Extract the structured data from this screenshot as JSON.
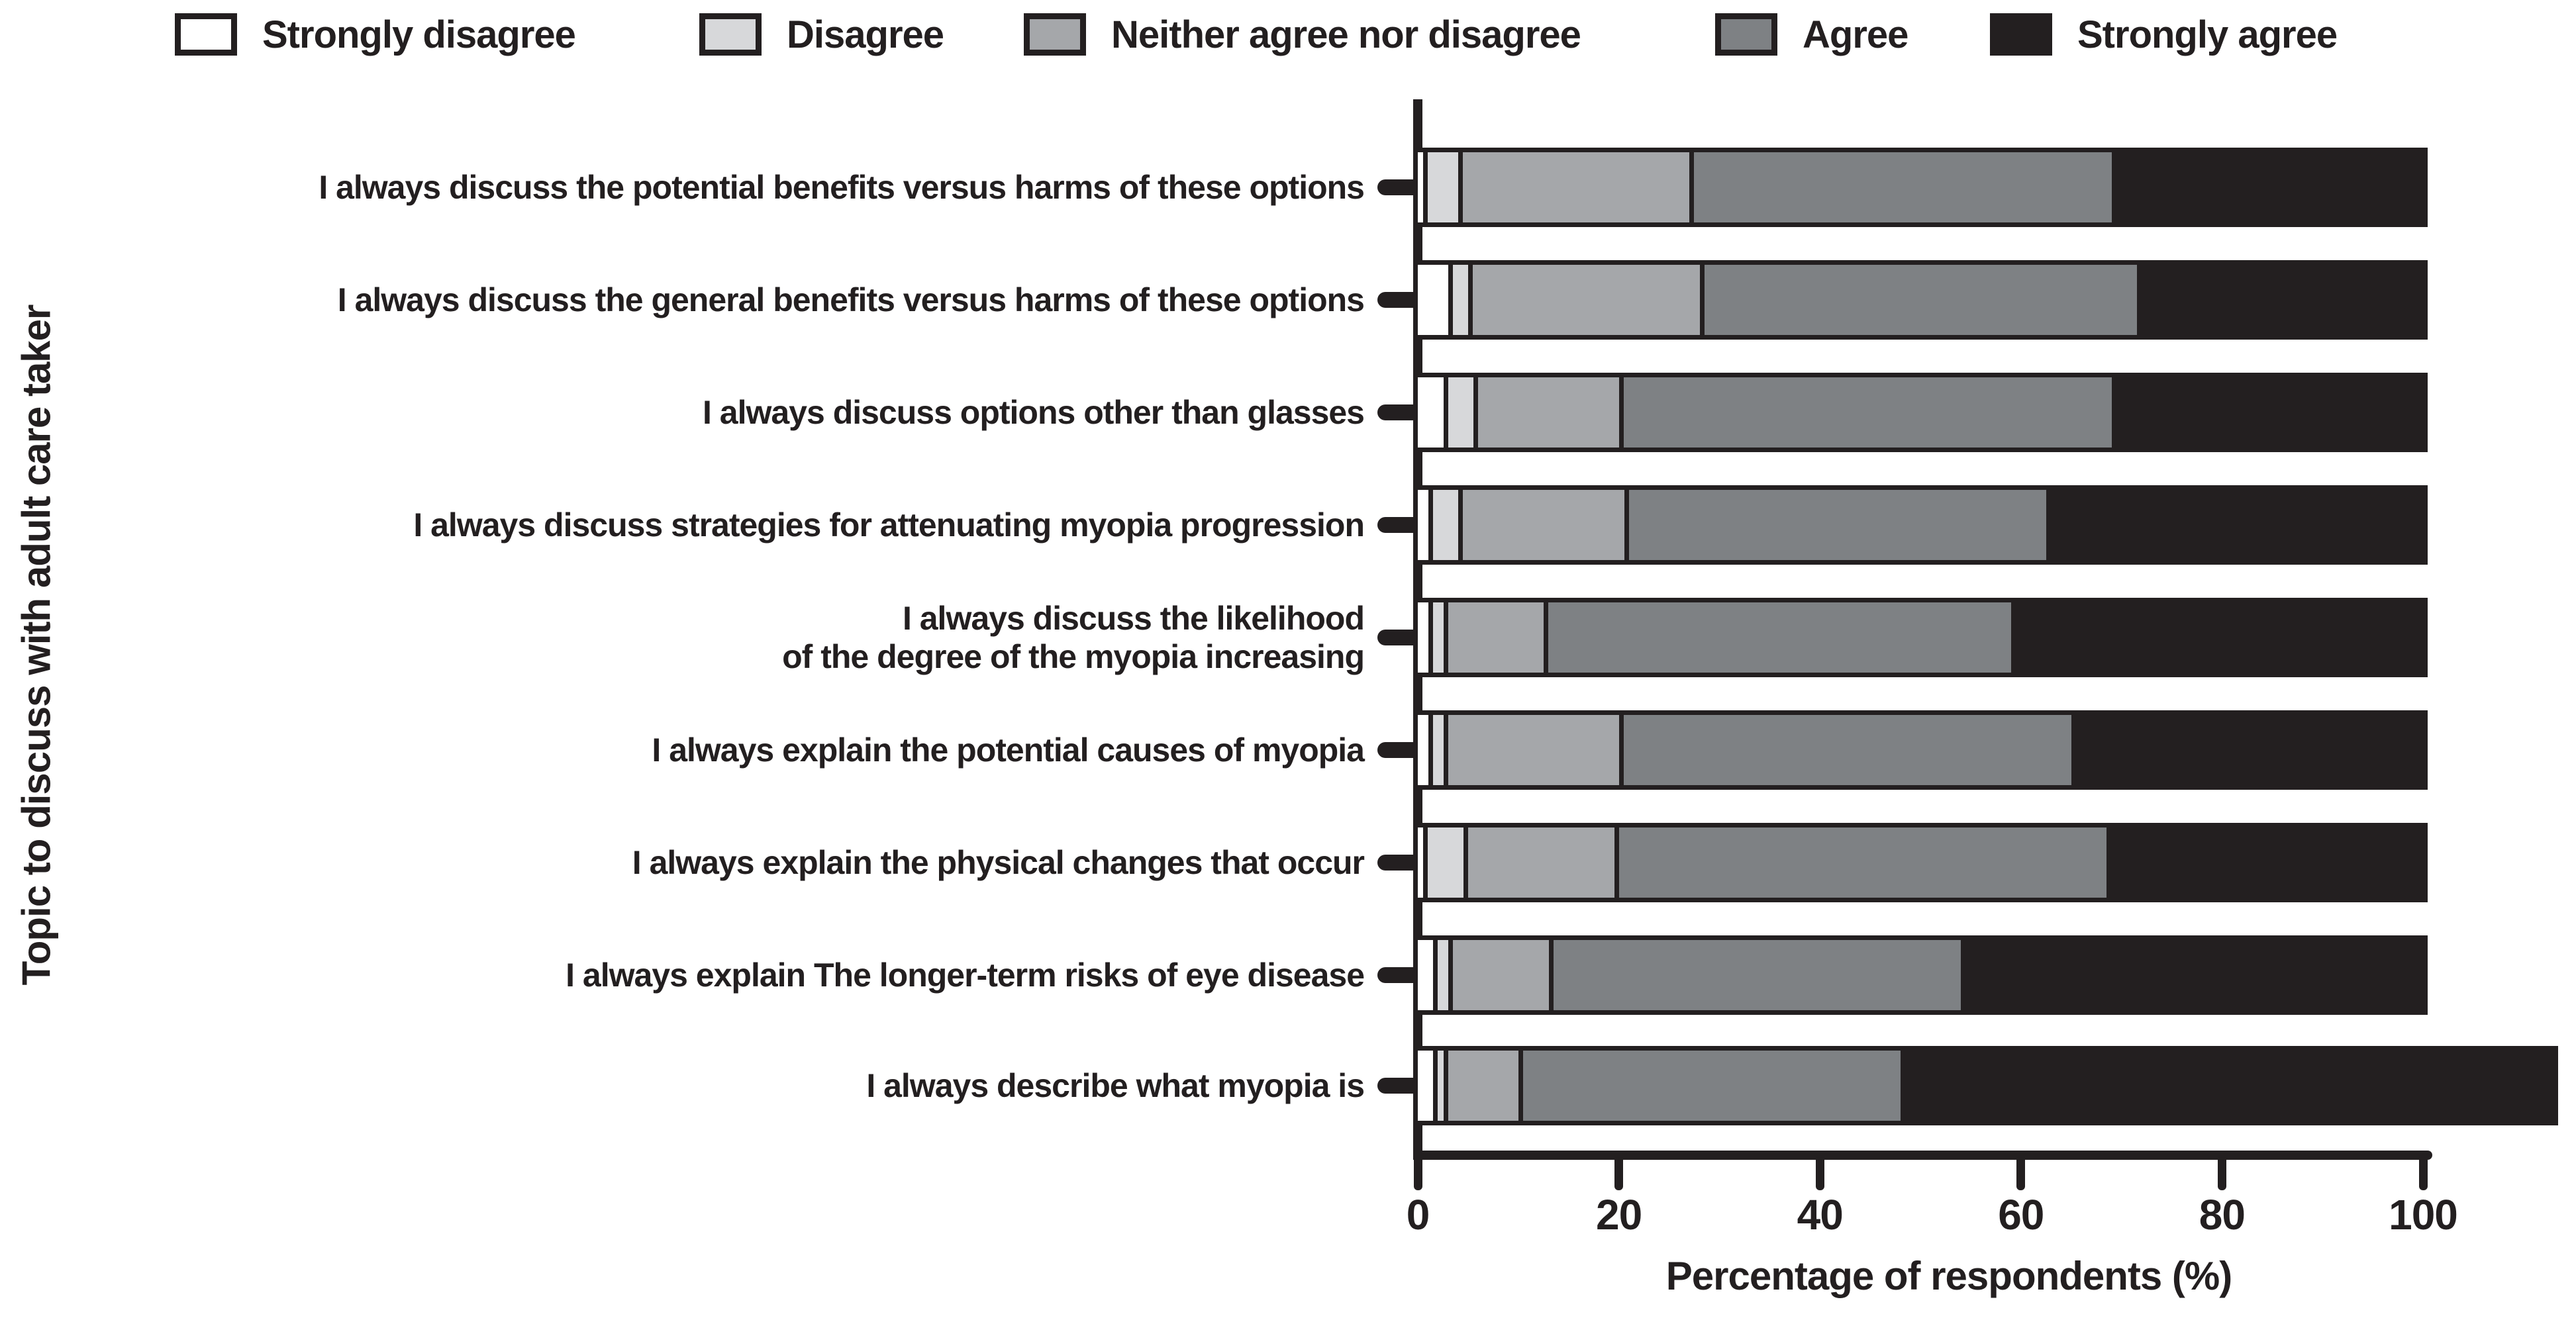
{
  "chart_data": {
    "type": "bar",
    "orientation": "horizontal",
    "stacked": true,
    "title": "",
    "xlabel": "Percentage of respondents (%)",
    "ylabel": "Topic to discuss with adult care taker",
    "xlim": [
      0,
      100
    ],
    "xticks": [
      0,
      20,
      40,
      60,
      80,
      100
    ],
    "grid": false,
    "legend_position": "top",
    "legend": [
      {
        "label": "Strongly disagree",
        "color": "#ffffff"
      },
      {
        "label": "Disagree",
        "color": "#d7d8da"
      },
      {
        "label": "Neither agree nor disagree",
        "color": "#a5a7aa"
      },
      {
        "label": "Agree",
        "color": "#7e8184"
      },
      {
        "label": "Strongly agree",
        "color": "#231f20"
      }
    ],
    "categories": [
      "I always discuss the potential benefits versus harms of these options",
      "I always discuss the general benefits versus harms of these options",
      "I always discuss options other than glasses",
      "I always discuss strategies for attenuating myopia progression",
      "I always discuss the likelihood\nof the degree of the myopia increasing",
      "I always explain the potential causes of myopia",
      "I always explain the physical changes that occur",
      "I always explain The longer-term risks of eye disease",
      "I always describe what myopia is"
    ],
    "series": [
      {
        "name": "Strongly disagree",
        "values": [
          1,
          3.5,
          3,
          1.5,
          1.5,
          1.5,
          1,
          2,
          2
        ]
      },
      {
        "name": "Disagree",
        "values": [
          3.5,
          2,
          3,
          3,
          1.5,
          1.5,
          4,
          1.5,
          1
        ]
      },
      {
        "name": "Neither agree nor disagree",
        "values": [
          23,
          23,
          14.5,
          16.5,
          10,
          17.5,
          15,
          10,
          7.5
        ]
      },
      {
        "name": "Agree",
        "values": [
          42,
          43.5,
          49,
          42,
          46.5,
          45,
          49,
          41,
          38
        ]
      },
      {
        "name": "Strongly agree",
        "values": [
          30.5,
          28,
          30.5,
          37,
          40.5,
          34.5,
          31,
          45.5,
          64.5
        ]
      }
    ],
    "axis_color": "#231f20",
    "note_last_bar_total": 113
  }
}
